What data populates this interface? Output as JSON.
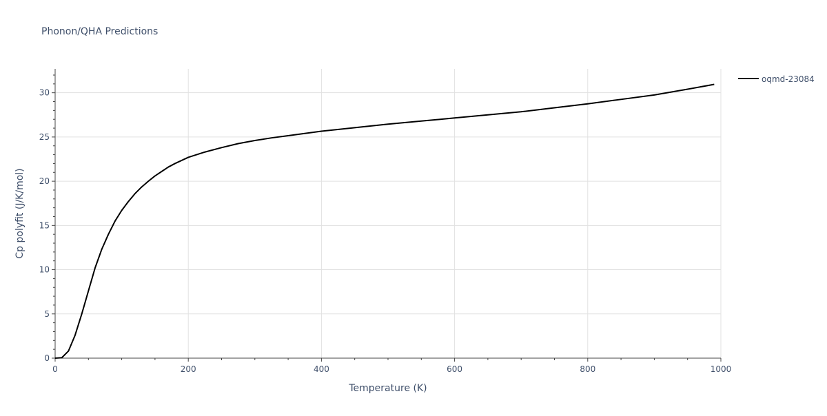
{
  "chart_data": {
    "type": "line",
    "title": "Phonon/QHA Predictions",
    "xlabel": "Temperature (K)",
    "ylabel": "Cp polyfit (J/K/mol)",
    "xlim": [
      0,
      1000
    ],
    "ylim": [
      0,
      32.7
    ],
    "xticks": [
      0,
      200,
      400,
      600,
      800,
      1000
    ],
    "yticks": [
      0,
      5,
      10,
      15,
      20,
      25,
      30
    ],
    "x_tick_labels": [
      "0",
      "200",
      "400",
      "600",
      "800",
      "1000"
    ],
    "y_tick_labels": [
      "0",
      "5",
      "10",
      "15",
      "20",
      "25",
      "30"
    ],
    "grid": true,
    "legend_position": "top-right",
    "series": [
      {
        "name": "oqmd-23084",
        "color": "#000000",
        "x": [
          0,
          10,
          20,
          30,
          40,
          50,
          60,
          70,
          80,
          90,
          100,
          110,
          120,
          130,
          140,
          150,
          160,
          170,
          180,
          200,
          225,
          250,
          275,
          300,
          325,
          350,
          400,
          450,
          500,
          550,
          600,
          650,
          700,
          750,
          800,
          850,
          900,
          950,
          990
        ],
        "y": [
          0,
          0.05,
          0.8,
          2.6,
          5.0,
          7.6,
          10.2,
          12.3,
          14.0,
          15.5,
          16.7,
          17.7,
          18.6,
          19.35,
          20.0,
          20.6,
          21.1,
          21.6,
          22.0,
          22.7,
          23.3,
          23.8,
          24.25,
          24.6,
          24.9,
          25.15,
          25.65,
          26.05,
          26.45,
          26.8,
          27.15,
          27.5,
          27.85,
          28.3,
          28.75,
          29.25,
          29.75,
          30.4,
          30.95
        ]
      }
    ]
  }
}
